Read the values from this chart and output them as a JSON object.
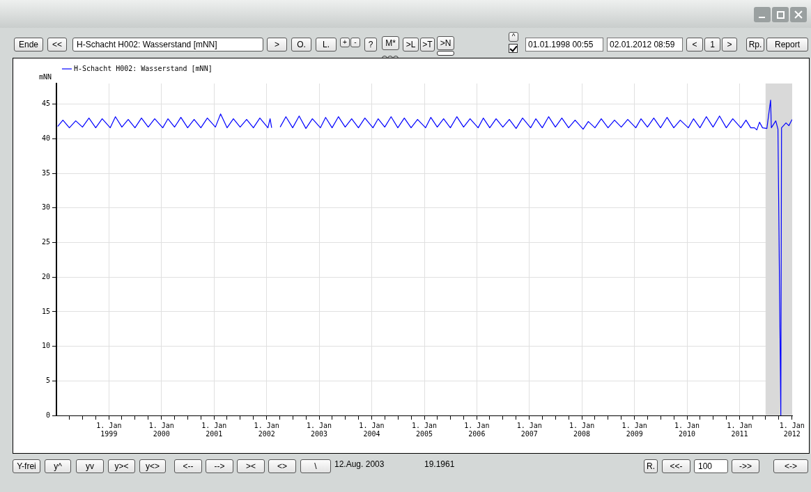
{
  "chart_data": {
    "type": "line",
    "ylabel": "mNN",
    "legend": "top left",
    "grid": true,
    "marker": "none",
    "line_style": "solid",
    "xlim": [
      "1998-01-01",
      "2012-01-02"
    ],
    "ylim": [
      0,
      48
    ],
    "yticks": [
      0,
      5,
      10,
      15,
      20,
      25,
      30,
      35,
      40,
      45
    ],
    "xticks": [
      {
        "value": "1998-04-01",
        "label": null
      },
      {
        "value": "1998-07-01",
        "label": null
      },
      {
        "value": "1998-10-01",
        "label": null
      },
      {
        "value": "1999-01-01",
        "label": "1. Jan 1999"
      },
      {
        "value": "1999-04-01",
        "label": null
      },
      {
        "value": "1999-07-01",
        "label": null
      },
      {
        "value": "1999-10-01",
        "label": null
      },
      {
        "value": "2000-01-01",
        "label": "1. Jan 2000"
      },
      {
        "value": "2000-04-01",
        "label": null
      },
      {
        "value": "2000-07-01",
        "label": null
      },
      {
        "value": "2000-10-01",
        "label": null
      },
      {
        "value": "2001-01-01",
        "label": "1. Jan 2001"
      },
      {
        "value": "2001-04-01",
        "label": null
      },
      {
        "value": "2001-07-01",
        "label": null
      },
      {
        "value": "2001-10-01",
        "label": null
      },
      {
        "value": "2002-01-01",
        "label": "1. Jan 2002"
      },
      {
        "value": "2002-04-01",
        "label": null
      },
      {
        "value": "2002-07-01",
        "label": null
      },
      {
        "value": "2002-10-01",
        "label": null
      },
      {
        "value": "2003-01-01",
        "label": "1. Jan 2003"
      },
      {
        "value": "2003-04-01",
        "label": null
      },
      {
        "value": "2003-07-01",
        "label": null
      },
      {
        "value": "2003-10-01",
        "label": null
      },
      {
        "value": "2004-01-01",
        "label": "1. Jan 2004"
      },
      {
        "value": "2004-04-01",
        "label": null
      },
      {
        "value": "2004-07-01",
        "label": null
      },
      {
        "value": "2004-10-01",
        "label": null
      },
      {
        "value": "2005-01-01",
        "label": "1. Jan 2005"
      },
      {
        "value": "2005-04-01",
        "label": null
      },
      {
        "value": "2005-07-01",
        "label": null
      },
      {
        "value": "2005-10-01",
        "label": null
      },
      {
        "value": "2006-01-01",
        "label": "1. Jan 2006"
      },
      {
        "value": "2006-04-01",
        "label": null
      },
      {
        "value": "2006-07-01",
        "label": null
      },
      {
        "value": "2006-10-01",
        "label": null
      },
      {
        "value": "2007-01-01",
        "label": "1. Jan 2007"
      },
      {
        "value": "2007-04-01",
        "label": null
      },
      {
        "value": "2007-07-01",
        "label": null
      },
      {
        "value": "2007-10-01",
        "label": null
      },
      {
        "value": "2008-01-01",
        "label": "1. Jan 2008"
      },
      {
        "value": "2008-04-01",
        "label": null
      },
      {
        "value": "2008-07-01",
        "label": null
      },
      {
        "value": "2008-10-01",
        "label": null
      },
      {
        "value": "2009-01-01",
        "label": "1. Jan 2009"
      },
      {
        "value": "2009-04-01",
        "label": null
      },
      {
        "value": "2009-07-01",
        "label": null
      },
      {
        "value": "2009-10-01",
        "label": null
      },
      {
        "value": "2010-01-01",
        "label": "1. Jan 2010"
      },
      {
        "value": "2010-04-01",
        "label": null
      },
      {
        "value": "2010-07-01",
        "label": null
      },
      {
        "value": "2010-10-01",
        "label": null
      },
      {
        "value": "2011-01-01",
        "label": "1. Jan 2011"
      },
      {
        "value": "2011-04-01",
        "label": null
      },
      {
        "value": "2011-07-01",
        "label": null
      },
      {
        "value": "2011-10-01",
        "label": null
      },
      {
        "value": "2012-01-01",
        "label": "1. Jan 2012"
      }
    ],
    "bands": [
      {
        "axis": "x",
        "from": "2011-07-01",
        "to": "2012-01-02",
        "color": "#d9d9d9"
      }
    ],
    "series": [
      {
        "name": "H-Schacht H002: Wasserstand [mNN]",
        "color": "#0000ff",
        "x": [
          "1998-01-10",
          "1998-02-15",
          "1998-04-01",
          "1998-05-15",
          "1998-07-01",
          "1998-08-15",
          "1998-10-01",
          "1998-11-15",
          "1999-01-10",
          "1999-02-15",
          "1999-04-01",
          "1999-05-15",
          "1999-07-01",
          "1999-08-15",
          "1999-10-01",
          "1999-11-15",
          "2000-01-10",
          "2000-02-15",
          "2000-04-01",
          "2000-05-15",
          "2000-07-01",
          "2000-08-15",
          "2000-10-01",
          "2000-11-15",
          "2001-01-10",
          "2001-02-15",
          "2001-04-01",
          "2001-05-15",
          "2001-07-01",
          "2001-08-15",
          "2001-10-01",
          "2001-11-15",
          "2002-01-10",
          "2002-01-25",
          "2002-02-05",
          "2002-03-01",
          "2002-04-05",
          "2002-05-15",
          "2002-07-01",
          "2002-08-15",
          "2002-10-01",
          "2002-11-15",
          "2003-01-10",
          "2003-02-15",
          "2003-04-01",
          "2003-05-15",
          "2003-07-01",
          "2003-08-15",
          "2003-10-01",
          "2003-11-15",
          "2004-01-10",
          "2004-02-15",
          "2004-04-01",
          "2004-05-15",
          "2004-07-01",
          "2004-08-15",
          "2004-10-01",
          "2004-11-15",
          "2005-01-10",
          "2005-02-15",
          "2005-04-01",
          "2005-05-15",
          "2005-07-01",
          "2005-08-15",
          "2005-10-01",
          "2005-11-15",
          "2006-01-10",
          "2006-02-15",
          "2006-04-01",
          "2006-05-15",
          "2006-07-01",
          "2006-08-15",
          "2006-10-01",
          "2006-11-15",
          "2007-01-10",
          "2007-02-15",
          "2007-04-01",
          "2007-05-15",
          "2007-07-01",
          "2007-08-15",
          "2007-10-01",
          "2007-11-15",
          "2008-01-10",
          "2008-02-15",
          "2008-04-01",
          "2008-05-15",
          "2008-07-01",
          "2008-08-15",
          "2008-10-01",
          "2008-11-15",
          "2009-01-10",
          "2009-02-15",
          "2009-04-01",
          "2009-05-15",
          "2009-07-01",
          "2009-08-15",
          "2009-10-01",
          "2009-11-15",
          "2010-01-10",
          "2010-02-15",
          "2010-04-01",
          "2010-05-15",
          "2010-07-01",
          "2010-08-15",
          "2010-10-01",
          "2010-11-15",
          "2011-01-10",
          "2011-02-15",
          "2011-03-20",
          "2011-04-15",
          "2011-05-01",
          "2011-05-20",
          "2011-06-10",
          "2011-07-10",
          "2011-08-05",
          "2011-08-10",
          "2011-09-10",
          "2011-09-25",
          "2011-10-15",
          "2011-10-20",
          "2011-11-20",
          "2011-12-10",
          "2012-01-01"
        ],
        "values": [
          41.8,
          42.7,
          41.6,
          42.6,
          41.7,
          43.0,
          41.6,
          42.9,
          41.6,
          43.2,
          41.7,
          42.8,
          41.6,
          43.0,
          41.7,
          42.9,
          41.6,
          42.9,
          41.7,
          43.1,
          41.6,
          42.8,
          41.6,
          43.0,
          41.7,
          43.6,
          41.6,
          42.9,
          41.7,
          42.8,
          41.6,
          43.0,
          41.6,
          42.9,
          41.6,
          null,
          41.7,
          43.2,
          41.6,
          43.3,
          41.5,
          42.9,
          41.6,
          43.1,
          41.6,
          43.2,
          41.7,
          42.9,
          41.6,
          43.0,
          41.6,
          42.9,
          41.7,
          43.2,
          41.6,
          43.0,
          41.6,
          42.8,
          41.6,
          43.1,
          41.7,
          42.9,
          41.6,
          43.2,
          41.7,
          42.9,
          41.6,
          43.0,
          41.6,
          42.9,
          41.7,
          42.8,
          41.5,
          43.0,
          41.6,
          42.9,
          41.6,
          43.2,
          41.7,
          43.0,
          41.6,
          42.7,
          41.4,
          42.5,
          41.6,
          42.9,
          41.6,
          42.7,
          41.7,
          42.8,
          41.6,
          42.9,
          41.7,
          43.0,
          41.6,
          43.1,
          41.6,
          42.7,
          41.6,
          42.9,
          41.6,
          43.2,
          41.7,
          43.3,
          41.6,
          42.9,
          41.6,
          42.7,
          41.6,
          41.6,
          41.3,
          42.4,
          41.6,
          41.5,
          45.6,
          41.6,
          42.6,
          41.4,
          0,
          41.6,
          42.3,
          41.9,
          42.8
        ]
      }
    ],
    "annotations": [
      "Ende",
      "<<",
      "H-Schacht H002: Wasserstand [mNN]",
      ">",
      "O.",
      "L.",
      "+",
      "-",
      "?",
      "M*",
      ">L",
      ">T",
      ">N",
      "^",
      "01.01.1998 00:55",
      "02.01.2012 08:59",
      "<",
      "1",
      ">",
      "Rp.",
      "Report",
      "Y-frei",
      "y^",
      "yv",
      "y><",
      "y<>",
      "<--",
      "-->",
      "><",
      "<>",
      "\\",
      "12.Aug. 2003",
      "19.1961",
      "R.",
      "<<-",
      "100",
      "->>",
      "<->"
    ]
  }
}
